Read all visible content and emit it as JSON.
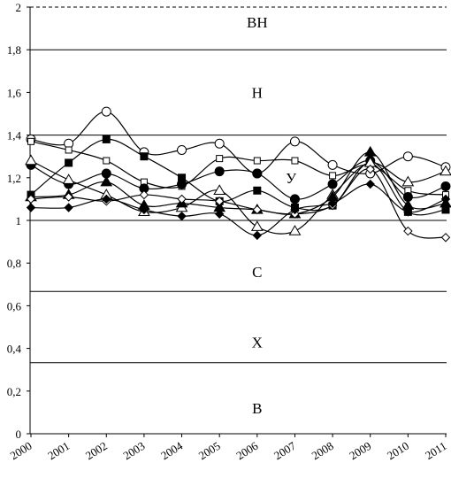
{
  "chart_data": {
    "type": "line",
    "x": [
      "2000",
      "2001",
      "2002",
      "2003",
      "2004",
      "2005",
      "2006",
      "2007",
      "2008",
      "2009",
      "2010",
      "2011"
    ],
    "ylim": [
      0,
      2
    ],
    "y_ticks": [
      0,
      0.2,
      0.4,
      0.6,
      0.8,
      1,
      1.2,
      1.4,
      1.6,
      1.8,
      2
    ],
    "y_tick_labels": [
      "0",
      "0,2",
      "0,4",
      "0,6",
      "0,8",
      "1",
      "1,2",
      "1,4",
      "1,6",
      "1,8",
      "2"
    ],
    "title": "",
    "xlabel": "",
    "ylabel": "",
    "grid": false,
    "boundaries": [
      {
        "value": 0.333,
        "style": "solid"
      },
      {
        "value": 0.667,
        "style": "solid"
      },
      {
        "value": 1.0,
        "style": "solid"
      },
      {
        "value": 1.4,
        "style": "solid"
      },
      {
        "value": 1.8,
        "style": "solid"
      },
      {
        "value": 2.0,
        "style": "dashed"
      }
    ],
    "zones": [
      {
        "label": "ВН",
        "y": 1.93,
        "x_index": 6
      },
      {
        "label": "Н",
        "y": 1.6,
        "x_index": 6
      },
      {
        "label": "У",
        "y": 1.2,
        "x_index": 6.9
      },
      {
        "label": "С",
        "y": 0.76,
        "x_index": 6
      },
      {
        "label": "Х",
        "y": 0.43,
        "x_index": 6
      },
      {
        "label": "В",
        "y": 0.12,
        "x_index": 6
      }
    ],
    "series": [
      {
        "marker": "open-circle",
        "values": [
          1.38,
          1.36,
          1.51,
          1.32,
          1.33,
          1.36,
          1.22,
          1.37,
          1.26,
          1.22,
          1.3,
          1.25
        ]
      },
      {
        "marker": "open-square",
        "values": [
          1.37,
          1.33,
          1.28,
          1.18,
          1.16,
          1.29,
          1.28,
          1.28,
          1.21,
          1.26,
          1.14,
          1.12
        ]
      },
      {
        "marker": "filled-square",
        "values": [
          1.12,
          1.27,
          1.38,
          1.3,
          1.2,
          1.09,
          1.14,
          1.06,
          1.07,
          1.27,
          1.04,
          1.05
        ]
      },
      {
        "marker": "filled-circle",
        "values": [
          1.26,
          1.17,
          1.22,
          1.15,
          1.17,
          1.23,
          1.22,
          1.1,
          1.17,
          1.28,
          1.11,
          1.16
        ]
      },
      {
        "marker": "open-triangle",
        "values": [
          1.28,
          1.19,
          1.12,
          1.04,
          1.06,
          1.14,
          0.97,
          0.95,
          1.12,
          1.27,
          1.18,
          1.23
        ]
      },
      {
        "marker": "filled-triangle",
        "values": [
          1.11,
          1.12,
          1.18,
          1.07,
          1.08,
          1.06,
          1.05,
          1.03,
          1.11,
          1.32,
          1.07,
          1.08
        ]
      },
      {
        "marker": "open-diamond",
        "values": [
          1.1,
          1.11,
          1.09,
          1.12,
          1.1,
          1.09,
          1.05,
          1.03,
          1.07,
          1.24,
          0.95,
          0.92
        ]
      },
      {
        "marker": "filled-diamond",
        "values": [
          1.06,
          1.06,
          1.1,
          1.05,
          1.02,
          1.03,
          0.93,
          1.05,
          1.08,
          1.17,
          1.04,
          1.1
        ]
      }
    ]
  }
}
